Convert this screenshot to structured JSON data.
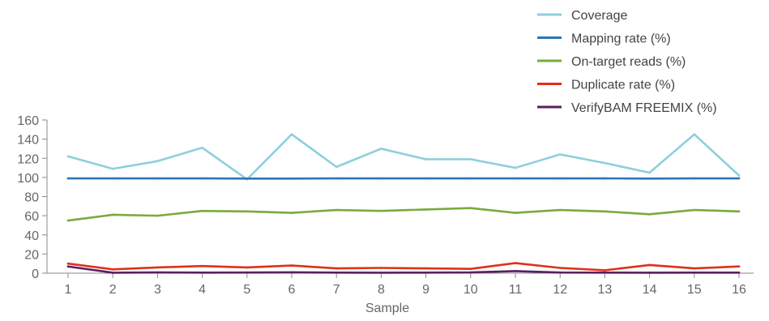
{
  "chart_data": {
    "type": "line",
    "title": "",
    "xlabel": "Sample",
    "ylabel": "",
    "categories": [
      "1",
      "2",
      "3",
      "4",
      "5",
      "6",
      "7",
      "8",
      "9",
      "10",
      "11",
      "12",
      "13",
      "14",
      "15",
      "16"
    ],
    "ylim": [
      0,
      160
    ],
    "yticks": [
      0,
      20,
      40,
      60,
      80,
      100,
      120,
      140,
      160
    ],
    "grid": false,
    "legend_position": "top-right",
    "series": [
      {
        "name": "Coverage",
        "color": "#8ecfdc",
        "values": [
          122,
          109,
          117,
          131,
          98,
          145,
          111,
          130,
          119,
          119,
          110,
          124,
          115,
          105,
          145,
          102
        ]
      },
      {
        "name": "Mapping rate (%)",
        "color": "#2e75b6",
        "values": [
          99,
          99,
          99,
          99,
          98.8,
          98.8,
          99,
          99,
          99,
          99,
          99,
          99,
          99,
          98.8,
          99,
          99
        ]
      },
      {
        "name": "On-target reads (%)",
        "color": "#7aab3e",
        "values": [
          55,
          61,
          60,
          65,
          64.5,
          63,
          66,
          65,
          66.5,
          68,
          63,
          66,
          64.5,
          61.5,
          66,
          64.5
        ]
      },
      {
        "name": "Duplicate rate (%)",
        "color": "#e0301e",
        "values": [
          10,
          4,
          6,
          7.5,
          6,
          8,
          5,
          5.5,
          5,
          4.5,
          10.5,
          5.5,
          3,
          8.5,
          5,
          7
        ]
      },
      {
        "name": "VerifyBAM FREEMIX (%)",
        "color": "#5b1f5e",
        "values": [
          7,
          0.5,
          0.8,
          0.6,
          0.7,
          0.9,
          0.6,
          0.5,
          0.6,
          0.8,
          2.2,
          0.7,
          0.6,
          0.5,
          0.6,
          0.6
        ]
      }
    ]
  }
}
